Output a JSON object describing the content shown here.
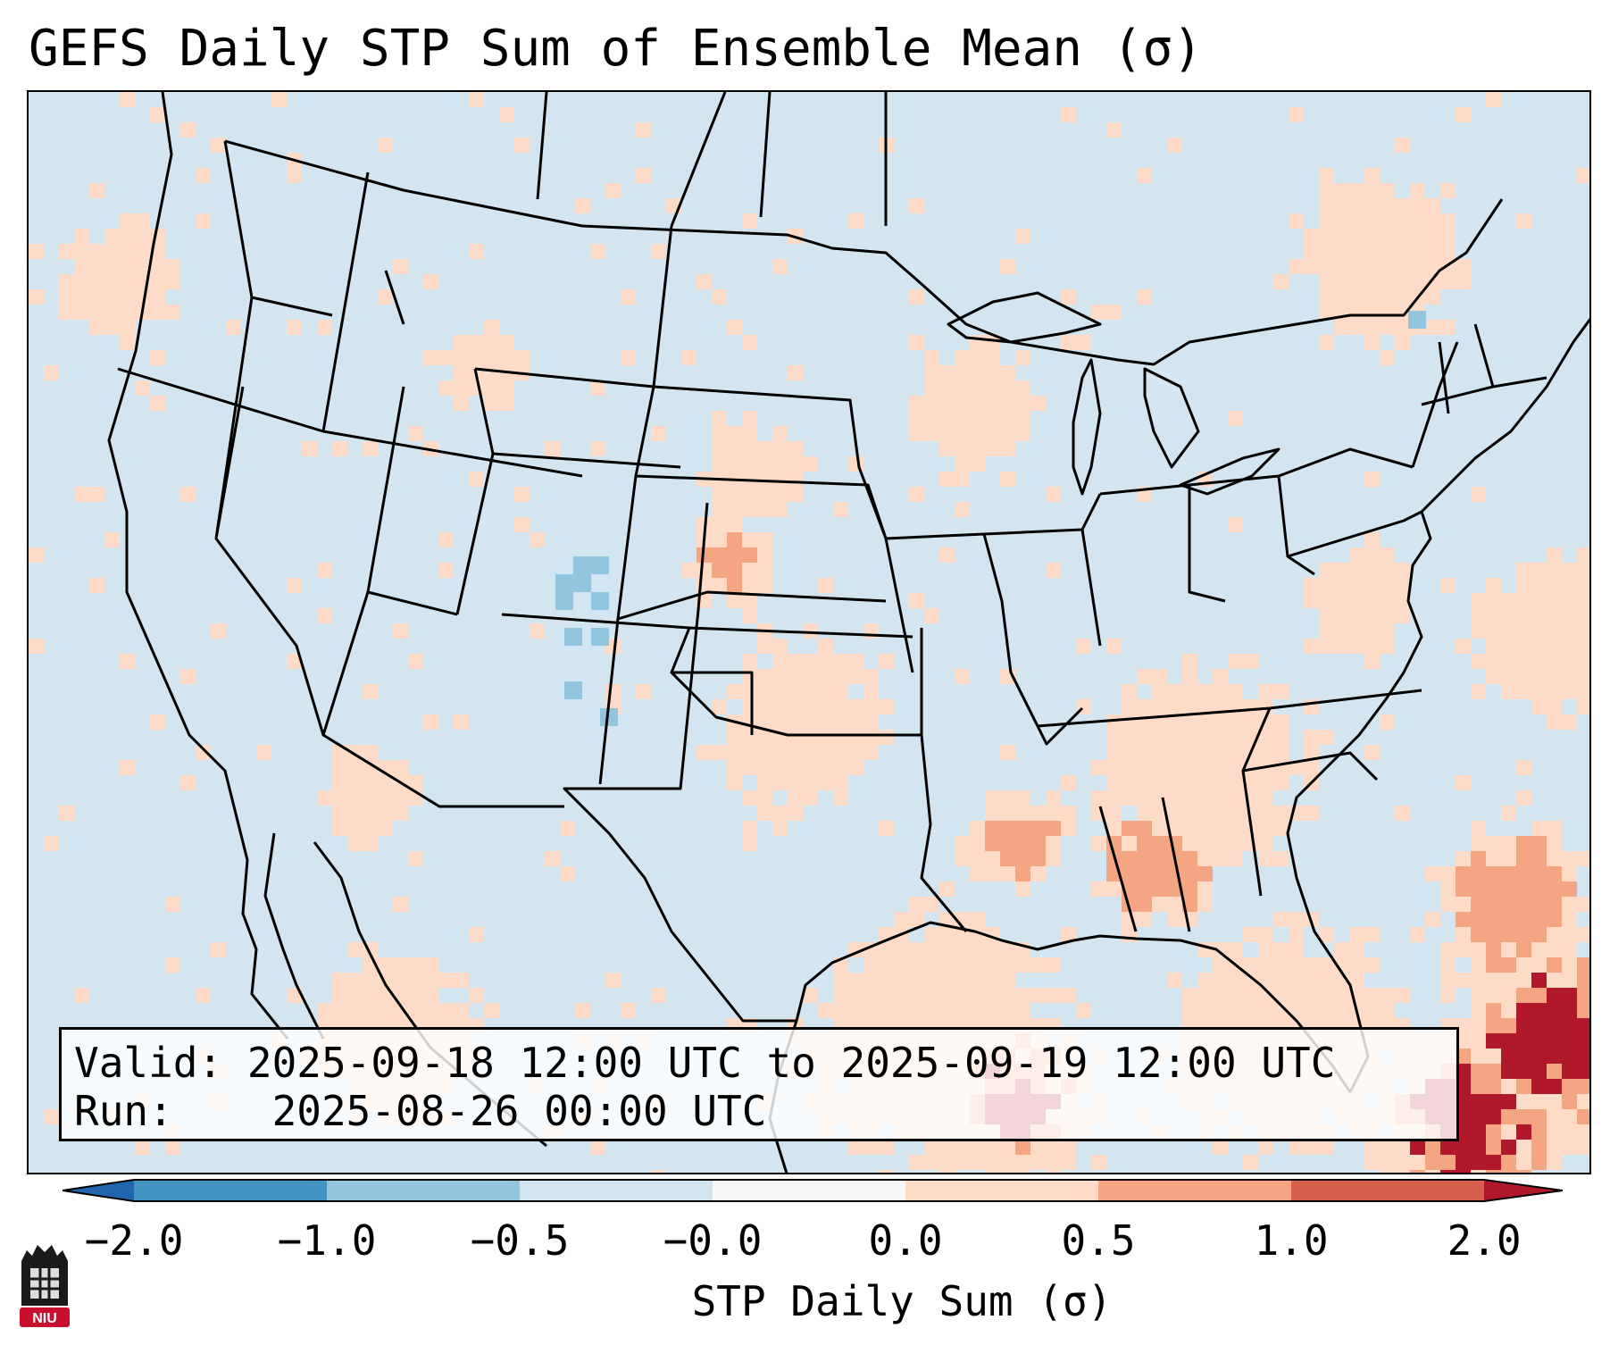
{
  "title": "GEFS Daily STP Sum of Ensemble Mean (σ)",
  "info": {
    "valid_label": "Valid:",
    "valid_value": "2025-09-18 12:00 UTC to 2025-09-19 12:00 UTC",
    "run_label": "Run:",
    "run_value": "2025-08-26 00:00 UTC"
  },
  "colorbar": {
    "label": "STP Daily Sum (σ)",
    "ticks": [
      "−2.0",
      "−1.0",
      "−0.5",
      "−0.0",
      "0.0",
      "0.5",
      "1.0",
      "2.0"
    ],
    "colors": {
      "below": "#2166ac",
      "bin1": "#4393c3",
      "bin2": "#92c5de",
      "bin3": "#d1e5f0",
      "bin4": "#f7f7f7",
      "bin5": "#fddbc7",
      "bin6": "#f4a582",
      "bin7": "#d6604d",
      "above": "#b2182b"
    }
  },
  "map": {
    "background_color": "#d3e5f0",
    "borders_color": "#000000",
    "region": "Continental United States"
  },
  "logo": {
    "text": "NIU"
  }
}
